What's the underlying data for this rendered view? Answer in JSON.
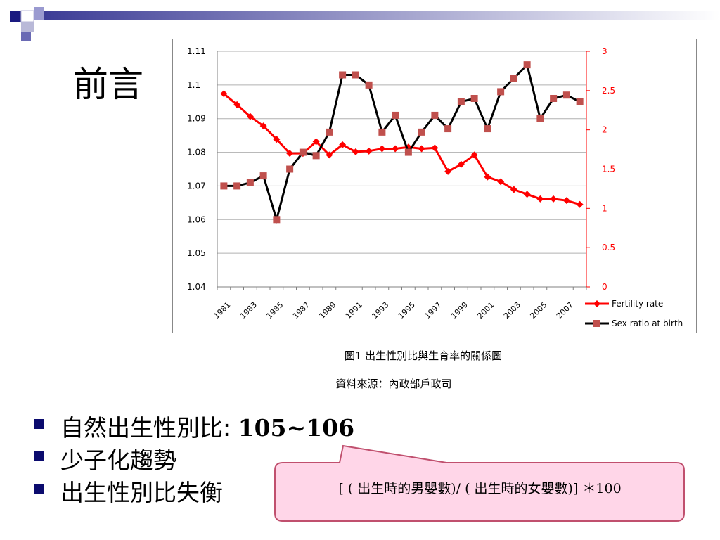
{
  "slide": {
    "title": "前言",
    "caption_figure": "圖1 出生性別比與生育率的關係圖",
    "caption_source": "資料來源：內政部戶政司",
    "bullets": [
      {
        "text": "自然出生性別比: ",
        "bold": "105~106"
      },
      {
        "text": "少子化趨勢",
        "bold": ""
      },
      {
        "text": "出生性別比失衡",
        "bold": ""
      }
    ],
    "callout": "[ ( 出生時的男嬰數)/ ( 出生時的女嬰數)]  ＊100"
  },
  "colors": {
    "fertility": "#ff0000",
    "sex_ratio": "#000000",
    "sex_ratio_marker": "#c0504d",
    "bullet": "#0b0b6e",
    "callout_fill": "#ffd6e8",
    "callout_stroke": "#c0506e"
  },
  "chart_data": {
    "type": "line",
    "x": [
      1981,
      1982,
      1983,
      1984,
      1985,
      1986,
      1987,
      1988,
      1989,
      1990,
      1991,
      1992,
      1993,
      1994,
      1995,
      1996,
      1997,
      1998,
      1999,
      2000,
      2001,
      2002,
      2003,
      2004,
      2005,
      2006,
      2007,
      2008
    ],
    "x_tick_labels": [
      "1981",
      "1983",
      "1985",
      "1987",
      "1989",
      "1991",
      "1993",
      "1995",
      "1997",
      "1999",
      "2001",
      "2003",
      "2005",
      "2007"
    ],
    "series": [
      {
        "name": "Fertility rate",
        "axis": "right",
        "marker": "diamond",
        "values": [
          2.46,
          2.32,
          2.17,
          2.05,
          1.88,
          1.7,
          1.7,
          1.85,
          1.68,
          1.81,
          1.72,
          1.73,
          1.76,
          1.76,
          1.78,
          1.76,
          1.77,
          1.47,
          1.56,
          1.68,
          1.4,
          1.34,
          1.24,
          1.18,
          1.12,
          1.12,
          1.1,
          1.05
        ]
      },
      {
        "name": "Sex ratio at birth",
        "axis": "left",
        "marker": "square",
        "values": [
          1.07,
          1.07,
          1.071,
          1.073,
          1.06,
          1.075,
          1.08,
          1.079,
          1.086,
          1.103,
          1.103,
          1.1,
          1.086,
          1.091,
          1.08,
          1.086,
          1.091,
          1.087,
          1.095,
          1.096,
          1.087,
          1.098,
          1.102,
          1.106,
          1.09,
          1.096,
          1.097,
          1.095
        ]
      }
    ],
    "y_left": {
      "ticks": [
        "1.04",
        "1.05",
        "1.06",
        "1.07",
        "1.08",
        "1.09",
        "1.1",
        "1.11"
      ],
      "range": [
        1.04,
        1.11
      ]
    },
    "y_right": {
      "ticks": [
        "0",
        "0.5",
        "1",
        "1.5",
        "2",
        "2.5",
        "3"
      ],
      "range": [
        0,
        3
      ]
    },
    "legend": "bottom-right"
  }
}
